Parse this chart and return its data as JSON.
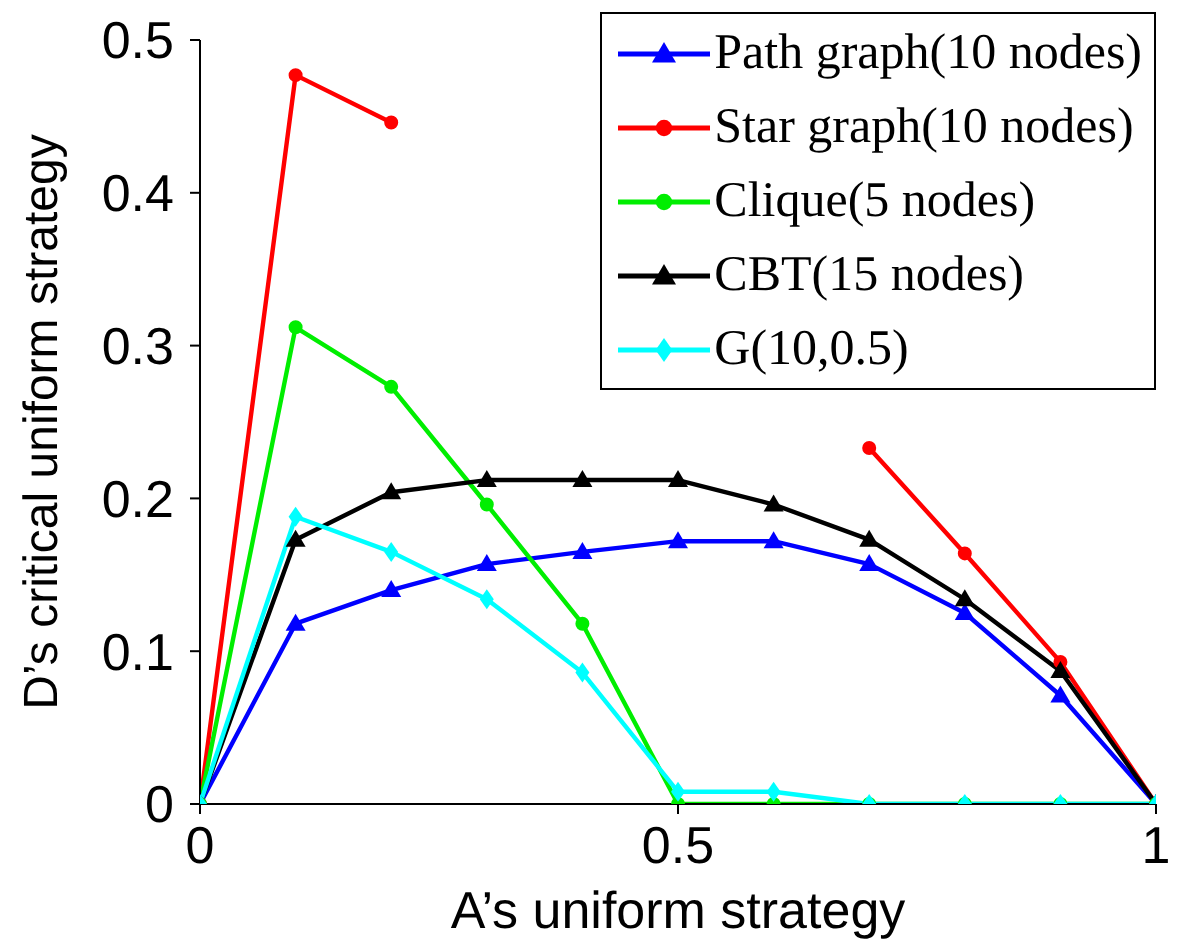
{
  "chart_data": {
    "type": "line",
    "xlabel": "A’s uniform strategy",
    "ylabel": "D’s critical uniform strategy",
    "x": [
      0,
      0.1,
      0.2,
      0.3,
      0.4,
      0.5,
      0.6,
      0.7,
      0.8,
      0.9,
      1
    ],
    "series": [
      {
        "name": "Path graph(10 nodes)",
        "color": "#0000ff",
        "marker": "triangle",
        "values": [
          0,
          0.118,
          0.14,
          0.157,
          0.165,
          0.172,
          0.172,
          0.157,
          0.125,
          0.071,
          0
        ]
      },
      {
        "name": "Star graph(10 nodes)",
        "color": "#ff0000",
        "marker": "circle",
        "values": [
          0,
          0.477,
          0.446,
          null,
          null,
          null,
          null,
          0.233,
          0.164,
          0.093,
          0
        ]
      },
      {
        "name": "Clique(5 nodes)",
        "color": "#00ee00",
        "marker": "circle",
        "values": [
          0,
          0.312,
          0.273,
          0.196,
          0.118,
          0,
          0,
          0,
          0,
          0,
          0
        ]
      },
      {
        "name": "CBT(15 nodes)",
        "color": "#000000",
        "marker": "triangle",
        "values": [
          0,
          0.173,
          0.204,
          0.212,
          0.212,
          0.212,
          0.196,
          0.173,
          0.134,
          0.087,
          0
        ]
      },
      {
        "name": "G(10,0.5)",
        "color": "#00ffff",
        "marker": "diamond",
        "values": [
          0,
          0.188,
          0.165,
          0.134,
          0.086,
          0.008,
          0.008,
          0,
          0,
          0,
          0
        ]
      }
    ],
    "xlim": [
      0,
      1
    ],
    "xticks": [
      0,
      0.5,
      1
    ],
    "ylim": [
      0,
      0.5
    ],
    "yticks": [
      0,
      0.1,
      0.2,
      0.3,
      0.4,
      0.5
    ],
    "grid": false,
    "legend": "top right",
    "line_style": "solid"
  }
}
